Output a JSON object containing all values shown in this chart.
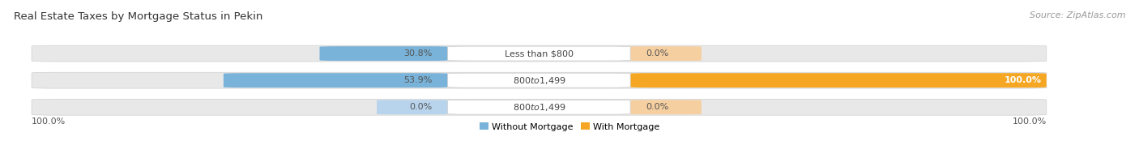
{
  "title": "Real Estate Taxes by Mortgage Status in Pekin",
  "source": "Source: ZipAtlas.com",
  "rows": [
    {
      "label": "Less than $800",
      "without_mortgage": 30.8,
      "with_mortgage": 0.0,
      "with_small": true
    },
    {
      "label": "$800 to $1,499",
      "without_mortgage": 53.9,
      "with_mortgage": 100.0,
      "with_small": false
    },
    {
      "label": "$800 to $1,499",
      "without_mortgage": 0.0,
      "with_mortgage": 0.0,
      "without_small": true,
      "with_small": true
    }
  ],
  "color_without": "#7ab3d9",
  "color_with": "#f5a623",
  "color_without_light": "#b8d4ec",
  "color_with_light": "#f5cfa0",
  "bg_bar": "#e8e8e8",
  "legend_labels": [
    "Without Mortgage",
    "With Mortgage"
  ],
  "left_label": "100.0%",
  "right_label": "100.0%",
  "title_fontsize": 9.5,
  "source_fontsize": 8,
  "label_fontsize": 8,
  "tick_fontsize": 8
}
